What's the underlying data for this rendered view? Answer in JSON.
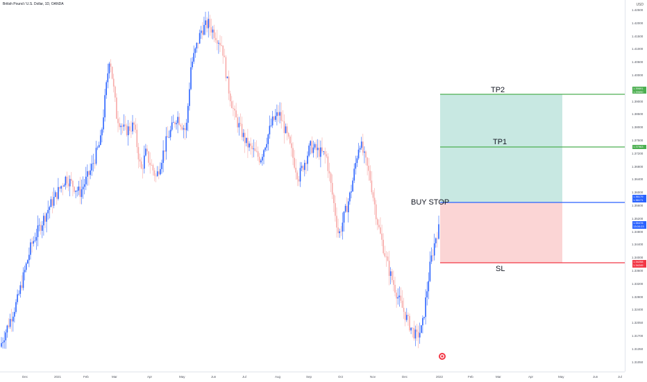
{
  "header": {
    "symbol": "British Pound / U.S. Dollar, 1D, OANDA",
    "currency": "USD"
  },
  "price_axis": {
    "ticks": [
      "1.42500",
      "1.42000",
      "1.41500",
      "1.41000",
      "1.40500",
      "1.40000",
      "1.39500",
      "1.39000",
      "1.38500",
      "1.38000",
      "1.37500",
      "1.37200",
      "1.36800",
      "1.36400",
      "1.36000",
      "1.35600",
      "1.35200",
      "1.34800",
      "1.34400",
      "1.34000",
      "1.33600",
      "1.33200",
      "1.32800",
      "1.32400",
      "1.32050",
      "1.31700",
      "1.31350",
      "1.31050"
    ]
  },
  "time_axis": {
    "labels": [
      "Dec",
      "2021",
      "Feb",
      "Mar",
      "Apr",
      "May",
      "Jun",
      "Jul",
      "Aug",
      "Sep",
      "Oct",
      "Nov",
      "Dec",
      "2022",
      "Feb",
      "Mar",
      "Apr",
      "May",
      "Jun",
      "Jul"
    ]
  },
  "levels": {
    "tp2": {
      "label": "TP2",
      "price": "1.39691",
      "tag2": "1.39690",
      "color": "#4caf50"
    },
    "tp1": {
      "label": "TP1",
      "price": "1.37963",
      "color": "#4caf50"
    },
    "entry": {
      "label": "BUY STOP",
      "price": "1.36179",
      "tag2": "1.36171",
      "color": "#2962ff"
    },
    "last": {
      "price": "1.35478",
      "countdown": "13:00:23",
      "color": "#2962ff"
    },
    "sl": {
      "label": "SL",
      "price": "1.34258",
      "tag2": "1.34249",
      "color": "#f23645"
    }
  },
  "colors": {
    "up": "#2962ff",
    "down": "#f7a9a7",
    "profit_zone": "#c8e8e2",
    "loss_zone": "#fbd5d5"
  },
  "chart_data": {
    "type": "candlestick",
    "symbol": "GBPUSD",
    "timeframe": "1D",
    "x_labels": [
      "Dec",
      "2021",
      "Feb",
      "Mar",
      "Apr",
      "May",
      "Jun",
      "Jul",
      "Aug",
      "Sep",
      "Oct",
      "Nov",
      "Dec",
      "2022",
      "Feb",
      "Mar",
      "Apr",
      "May",
      "Jun",
      "Jul"
    ],
    "ylim": [
      1.3105,
      1.425
    ],
    "path_anchors": [
      [
        0,
        1.315
      ],
      [
        25,
        1.33
      ],
      [
        45,
        1.348
      ],
      [
        70,
        1.36
      ],
      [
        95,
        1.37
      ],
      [
        115,
        1.365
      ],
      [
        130,
        1.372
      ],
      [
        145,
        1.382
      ],
      [
        158,
        1.41
      ],
      [
        168,
        1.39
      ],
      [
        180,
        1.385
      ],
      [
        193,
        1.387
      ],
      [
        203,
        1.372
      ],
      [
        210,
        1.378
      ],
      [
        225,
        1.37
      ],
      [
        240,
        1.382
      ],
      [
        255,
        1.39
      ],
      [
        268,
        1.385
      ],
      [
        275,
        1.406
      ],
      [
        290,
        1.418
      ],
      [
        300,
        1.42
      ],
      [
        320,
        1.413
      ],
      [
        328,
        1.4
      ],
      [
        338,
        1.39
      ],
      [
        355,
        1.381
      ],
      [
        375,
        1.376
      ],
      [
        392,
        1.388
      ],
      [
        402,
        1.391
      ],
      [
        414,
        1.383
      ],
      [
        430,
        1.37
      ],
      [
        447,
        1.38
      ],
      [
        470,
        1.377
      ],
      [
        488,
        1.351
      ],
      [
        505,
        1.365
      ],
      [
        518,
        1.382
      ],
      [
        533,
        1.37
      ],
      [
        545,
        1.354
      ],
      [
        560,
        1.34
      ],
      [
        575,
        1.33
      ],
      [
        590,
        1.322
      ],
      [
        600,
        1.318
      ],
      [
        608,
        1.321
      ],
      [
        620,
        1.342
      ],
      [
        628,
        1.351
      ],
      [
        635,
        1.3548
      ]
    ],
    "positions": {
      "tp2": 1.39691,
      "tp1": 1.37963,
      "entry": 1.36179,
      "stop_loss": 1.34258,
      "last_price": 1.35478
    }
  }
}
